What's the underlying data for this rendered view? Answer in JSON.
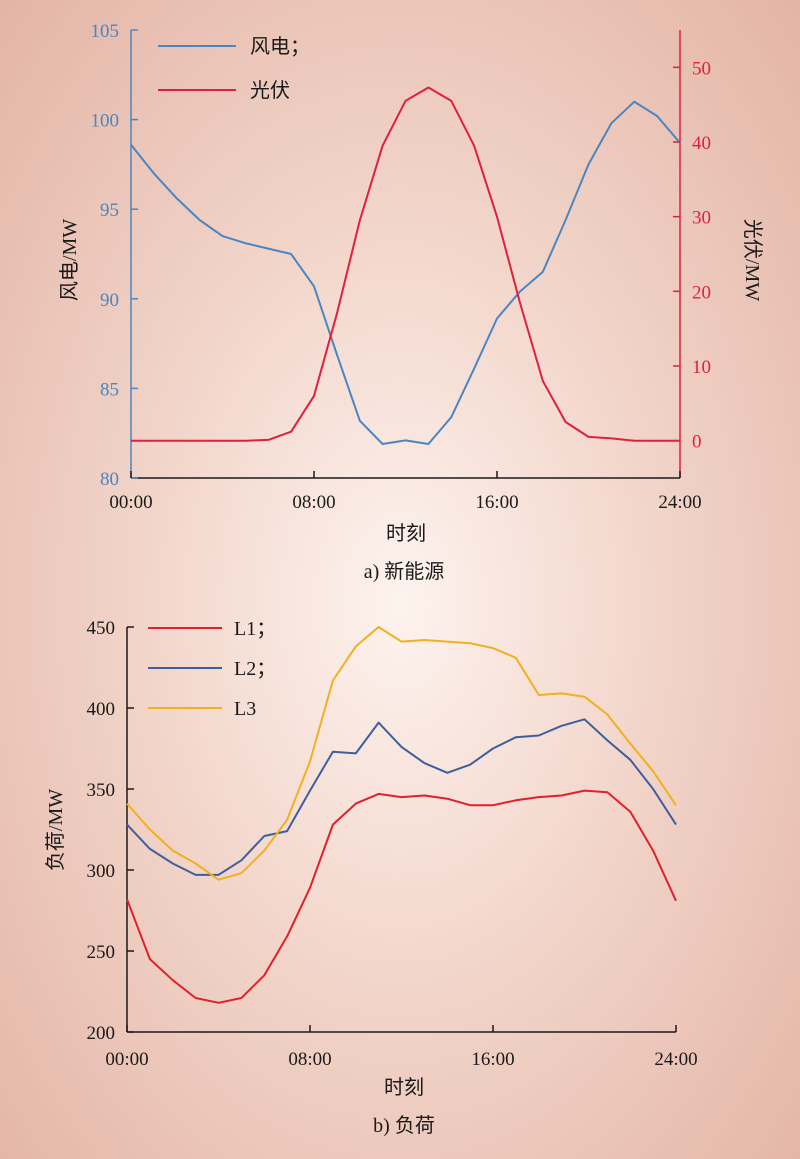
{
  "colors": {
    "wind": "#4a86c2",
    "pv": "#e0203c",
    "L1": "#e0202a",
    "L2": "#3d5f9c",
    "L3": "#f0b020",
    "axis": "#1a1a1a"
  },
  "chart_data": [
    {
      "type": "line",
      "caption": "a) 新能源",
      "xlabel": "时刻",
      "ylabel_left": "风电/MW",
      "ylabel_right": "光伏/MW",
      "x_ticks": [
        "00:00",
        "08:00",
        "16:00",
        "24:00"
      ],
      "xlim": [
        0,
        24
      ],
      "ylim_left": [
        80,
        105
      ],
      "ylim_right": [
        -5,
        55
      ],
      "y_ticks_left": [
        80,
        85,
        90,
        95,
        100,
        105
      ],
      "y_ticks_right": [
        0,
        10,
        20,
        30,
        40,
        50
      ],
      "legend_position": "top-left",
      "x": [
        0,
        1,
        2,
        3,
        4,
        5,
        6,
        7,
        8,
        9,
        10,
        11,
        12,
        13,
        14,
        15,
        16,
        17,
        18,
        19,
        20,
        21,
        22,
        23,
        24
      ],
      "series": [
        {
          "name": "风电；",
          "axis": "left",
          "color_key": "wind",
          "values": [
            98.6,
            97.0,
            95.6,
            94.4,
            93.5,
            93.1,
            92.8,
            92.5,
            90.7,
            86.9,
            83.2,
            81.9,
            82.1,
            81.9,
            83.4,
            86.1,
            88.9,
            90.4,
            91.5,
            94.4,
            97.5,
            99.8,
            101.0,
            100.2,
            98.7
          ]
        },
        {
          "name": "光伏",
          "axis": "right",
          "color_key": "pv",
          "values": [
            0,
            0,
            0,
            0,
            0,
            0,
            0.1,
            1.2,
            6.0,
            17.0,
            29.5,
            39.5,
            45.5,
            47.3,
            45.5,
            39.5,
            30.0,
            18.5,
            8.0,
            2.5,
            0.5,
            0.3,
            0,
            0,
            0
          ]
        }
      ]
    },
    {
      "type": "line",
      "caption": "b) 负荷",
      "xlabel": "时刻",
      "ylabel": "负荷/MW",
      "x_ticks": [
        "00:00",
        "08:00",
        "16:00",
        "24:00"
      ],
      "xlim": [
        0,
        24
      ],
      "ylim": [
        200,
        450
      ],
      "y_ticks": [
        200,
        250,
        300,
        350,
        400,
        450
      ],
      "legend_position": "top-left",
      "x": [
        0,
        1,
        2,
        3,
        4,
        5,
        6,
        7,
        8,
        9,
        10,
        11,
        12,
        13,
        14,
        15,
        16,
        17,
        18,
        19,
        20,
        21,
        22,
        23,
        24
      ],
      "series": [
        {
          "name": "L1；",
          "color_key": "L1",
          "values": [
            282,
            245,
            232,
            221,
            218,
            221,
            235,
            259,
            289,
            328,
            341,
            347,
            345,
            346,
            344,
            340,
            340,
            343,
            345,
            346,
            349,
            348,
            336,
            312,
            281
          ]
        },
        {
          "name": "L2；",
          "color_key": "L2",
          "values": [
            328,
            313,
            304,
            297,
            297,
            306,
            321,
            324,
            349,
            373,
            372,
            391,
            376,
            366,
            360,
            365,
            375,
            382,
            383,
            389,
            393,
            380,
            368,
            350,
            328
          ]
        },
        {
          "name": "L3",
          "color_key": "L3",
          "values": [
            341,
            325,
            312,
            304,
            294,
            298,
            312,
            331,
            367,
            417,
            438,
            450,
            441,
            442,
            441,
            440,
            437,
            431,
            408,
            409,
            407,
            396,
            378,
            361,
            340
          ]
        }
      ]
    }
  ]
}
